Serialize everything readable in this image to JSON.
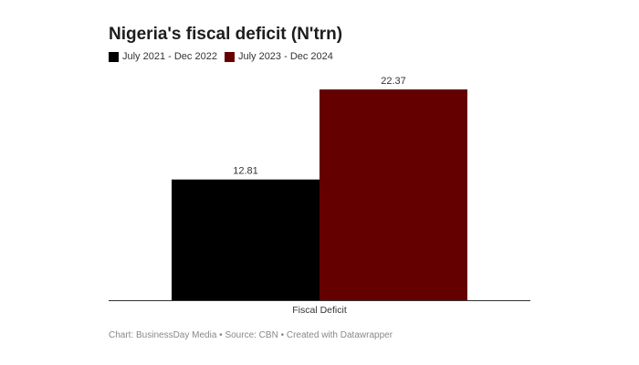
{
  "chart_data": {
    "type": "bar",
    "title": "Nigeria's fiscal deficit (N'trn)",
    "categories": [
      "Fiscal Deficit"
    ],
    "series": [
      {
        "name": "July 2021 - Dec 2022",
        "values": [
          12.81
        ],
        "color": "#000000"
      },
      {
        "name": "July 2023 - Dec 2024",
        "values": [
          22.37
        ],
        "color": "#650000"
      }
    ],
    "data_labels": [
      "12.81",
      "22.37"
    ],
    "xlabel": "",
    "ylabel": "",
    "ylim": [
      0,
      22.37
    ],
    "grid": false,
    "legend": "top-left"
  },
  "footer": "Chart: BusinessDay Media • Source: CBN • Created with Datawrapper"
}
